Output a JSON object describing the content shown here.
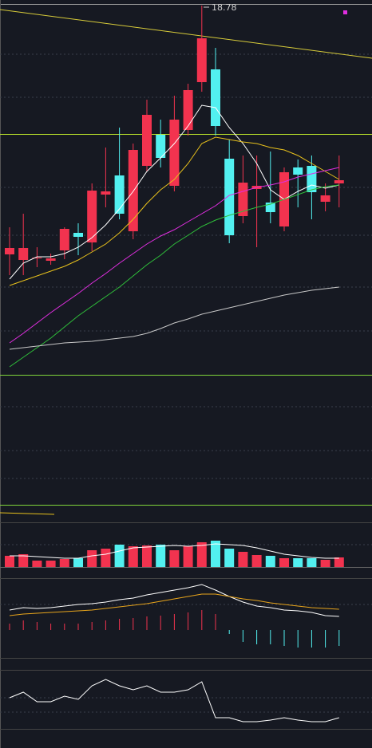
{
  "chart_data": [
    {
      "type": "candlestick",
      "high_label": "18.78",
      "ylim": [
        9.52,
        18.92
      ],
      "up_color": "#f2334f",
      "down_color": "#52f0f0",
      "open": [
        12.54,
        12.4,
        12.46,
        12.38,
        12.64,
        13.08,
        12.84,
        14.04,
        14.52,
        13.12,
        14.76,
        15.54,
        14.26,
        15.66,
        16.86,
        17.18,
        14.94,
        13.5,
        14.18,
        13.84,
        13.24,
        14.72,
        14.76,
        13.86,
        14.32
      ],
      "high": [
        13.22,
        13.56,
        12.72,
        12.56,
        13.22,
        13.32,
        14.32,
        15.22,
        15.72,
        15.32,
        16.42,
        15.92,
        16.52,
        16.82,
        18.78,
        17.72,
        15.42,
        15.02,
        15.02,
        15.12,
        14.72,
        14.92,
        15.02,
        14.32,
        15.02
      ],
      "low": [
        12.02,
        12.02,
        12.22,
        12.28,
        12.42,
        12.52,
        12.62,
        13.72,
        13.42,
        12.92,
        14.62,
        14.72,
        14.12,
        15.52,
        16.62,
        15.52,
        12.82,
        13.32,
        12.72,
        13.32,
        13.12,
        13.72,
        13.42,
        13.62,
        13.72
      ],
      "close": [
        12.7,
        12.7,
        12.46,
        12.44,
        13.18,
        12.98,
        14.14,
        14.12,
        13.56,
        15.16,
        16.04,
        14.96,
        15.92,
        16.66,
        17.96,
        15.76,
        13.02,
        14.34,
        14.26,
        13.6,
        14.6,
        14.54,
        14.1,
        14.02,
        14.4
      ],
      "series": [
        {
          "color": "#ffffff",
          "values": [
            11.92,
            12.32,
            12.48,
            12.48,
            12.56,
            12.72,
            12.96,
            13.28,
            13.68,
            14.12,
            14.62,
            14.96,
            15.32,
            15.76,
            16.28,
            16.22,
            15.72,
            15.32,
            14.82,
            14.16,
            13.92,
            14.12,
            14.28,
            14.2,
            14.28
          ]
        },
        {
          "color": "#e8c11c",
          "values": [
            11.76,
            11.88,
            12.0,
            12.12,
            12.24,
            12.4,
            12.6,
            12.8,
            13.08,
            13.42,
            13.82,
            14.16,
            14.42,
            14.82,
            15.32,
            15.48,
            15.42,
            15.36,
            15.32,
            15.22,
            15.16,
            15.02,
            14.82,
            14.62,
            14.42
          ]
        },
        {
          "color": "#e02ee0",
          "values": [
            10.32,
            10.56,
            10.82,
            11.08,
            11.32,
            11.56,
            11.82,
            12.06,
            12.32,
            12.56,
            12.8,
            13.0,
            13.16,
            13.36,
            13.56,
            13.76,
            14.02,
            14.12,
            14.22,
            14.28,
            14.36,
            14.48,
            14.56,
            14.64,
            14.72
          ]
        },
        {
          "color": "#2fbf3a",
          "values": [
            9.72,
            9.96,
            10.2,
            10.44,
            10.72,
            11.0,
            11.24,
            11.48,
            11.72,
            12.0,
            12.28,
            12.52,
            12.8,
            13.02,
            13.24,
            13.4,
            13.52,
            13.62,
            13.72,
            13.8,
            13.92,
            14.04,
            14.16,
            14.24,
            14.28
          ]
        },
        {
          "color": "#c8c8c8",
          "values": [
            10.16,
            10.2,
            10.24,
            10.28,
            10.32,
            10.34,
            10.36,
            10.4,
            10.44,
            10.48,
            10.56,
            10.68,
            10.82,
            10.92,
            11.04,
            11.12,
            11.2,
            11.28,
            11.36,
            11.44,
            11.52,
            11.58,
            11.64,
            11.68,
            11.72
          ]
        }
      ]
    },
    {
      "type": "bar",
      "ylim": [
        0,
        56
      ],
      "values": [
        14,
        16,
        8,
        8,
        10,
        11,
        21,
        23,
        28,
        26,
        27,
        28,
        21,
        26,
        31,
        33,
        23,
        19,
        15,
        14,
        11,
        11,
        11,
        9,
        12
      ],
      "series": [
        {
          "color": "#ffffff",
          "values": [
            14,
            14,
            13,
            12,
            11,
            11,
            14,
            16,
            20,
            24,
            25,
            26,
            27,
            26,
            27,
            29,
            28,
            27,
            24,
            20,
            16,
            14,
            12,
            11,
            11
          ]
        }
      ]
    },
    {
      "type": "macd",
      "ylim": [
        -35,
        65
      ],
      "values": [
        8,
        12,
        10,
        8,
        8,
        8,
        10,
        12,
        14,
        15,
        17,
        18,
        20,
        22,
        25,
        20,
        -5,
        -15,
        -18,
        -18,
        -20,
        -22,
        -22,
        -22,
        -20
      ],
      "series": [
        {
          "color": "#ffffff",
          "values": [
            25,
            28,
            27,
            28,
            30,
            32,
            33,
            35,
            38,
            40,
            44,
            47,
            50,
            53,
            57,
            50,
            42,
            35,
            30,
            28,
            25,
            24,
            22,
            18,
            17
          ]
        },
        {
          "color": "#e8a51c",
          "values": [
            18,
            20,
            21,
            22,
            23,
            24,
            25,
            27,
            29,
            31,
            33,
            36,
            39,
            42,
            45,
            45,
            42,
            39,
            37,
            34,
            32,
            30,
            28,
            27,
            26
          ]
        }
      ]
    },
    {
      "type": "line",
      "ylim": [
        0,
        75
      ],
      "series": [
        {
          "color": "#ffffff",
          "values": [
            40,
            47,
            35,
            35,
            42,
            38,
            55,
            63,
            55,
            50,
            55,
            47,
            47,
            50,
            60,
            15,
            15,
            10,
            10,
            12,
            15,
            12,
            10,
            10,
            15
          ]
        }
      ]
    }
  ]
}
